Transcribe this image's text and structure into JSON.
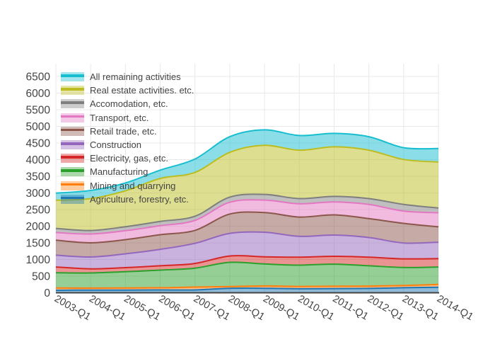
{
  "chart_data": {
    "type": "area",
    "stacked": true,
    "title": "",
    "xlabel": "",
    "ylabel": "",
    "grid": true,
    "ylim": [
      0,
      6500
    ],
    "y_ticks": [
      0,
      500,
      1000,
      1500,
      2000,
      2500,
      3000,
      3500,
      4000,
      4500,
      5000,
      5500,
      6000,
      6500
    ],
    "x": [
      "2003-Q1",
      "2004-Q1",
      "2005-Q1",
      "2006-Q1",
      "2007-Q1",
      "2008-Q1",
      "2009-Q1",
      "2010-Q1",
      "2011-Q1",
      "2012-Q1",
      "2013-Q1",
      "2014-Q1"
    ],
    "series": [
      {
        "name": "Agriculture, forestry, etc.",
        "color": "#1f77b4",
        "values": [
          75,
          80,
          80,
          85,
          85,
          135,
          135,
          120,
          125,
          130,
          150,
          165
        ]
      },
      {
        "name": "Mining and quarrying",
        "color": "#ff7f0e",
        "values": [
          70,
          60,
          65,
          65,
          85,
          50,
          70,
          70,
          70,
          70,
          70,
          85
        ]
      },
      {
        "name": "Manufacturing",
        "color": "#2ca02c",
        "values": [
          455,
          455,
          490,
          530,
          570,
          730,
          660,
          640,
          665,
          610,
          540,
          525
        ]
      },
      {
        "name": "Electricity, gas, etc.",
        "color": "#d62728",
        "values": [
          175,
          125,
          120,
          130,
          140,
          190,
          215,
          240,
          235,
          260,
          260,
          250
        ]
      },
      {
        "name": "Construction",
        "color": "#9467bd",
        "values": [
          355,
          355,
          415,
          495,
          605,
          680,
          740,
          625,
          640,
          590,
          475,
          495
        ]
      },
      {
        "name": "Retail trade, etc.",
        "color": "#8c564b",
        "values": [
          450,
          425,
          425,
          440,
          390,
          580,
          590,
          580,
          605,
          570,
          590,
          460
        ]
      },
      {
        "name": "Transport, etc.",
        "color": "#e377c2",
        "values": [
          230,
          265,
          270,
          270,
          300,
          355,
          375,
          400,
          390,
          425,
          370,
          425
        ]
      },
      {
        "name": "Accomodation, etc.",
        "color": "#7f7f7f",
        "values": [
          125,
          105,
          120,
          130,
          125,
          155,
          170,
          155,
          165,
          175,
          200,
          140
        ]
      },
      {
        "name": "Real estate activities. etc.",
        "color": "#bcbd22",
        "values": [
          845,
          960,
          1080,
          1290,
          1315,
          1345,
          1475,
          1455,
          1490,
          1455,
          1350,
          1385
        ]
      },
      {
        "name": "All remaining activities",
        "color": "#17becf",
        "values": [
          215,
          245,
          235,
          250,
          405,
          470,
          465,
          440,
          405,
          405,
          355,
          405
        ]
      }
    ],
    "legend_position": "top-left-inside",
    "legend_order": "top-of-stack-first",
    "legend_entries": [
      "All remaining activities",
      "Real estate activities. etc.",
      "Accomodation, etc.",
      "Transport, etc.",
      "Retail trade, etc.",
      "Construction",
      "Electricity, gas, etc.",
      "Manufacturing",
      "Mining and quarrying",
      "Agriculture, forestry, etc."
    ],
    "style": {
      "fill_opacity": 0.5,
      "line_width": 2,
      "grid_color": "#e8e8e8",
      "zero_line_color": "#444444",
      "tick_label_color": "#444444",
      "x_tick_angle_deg": 30
    }
  }
}
